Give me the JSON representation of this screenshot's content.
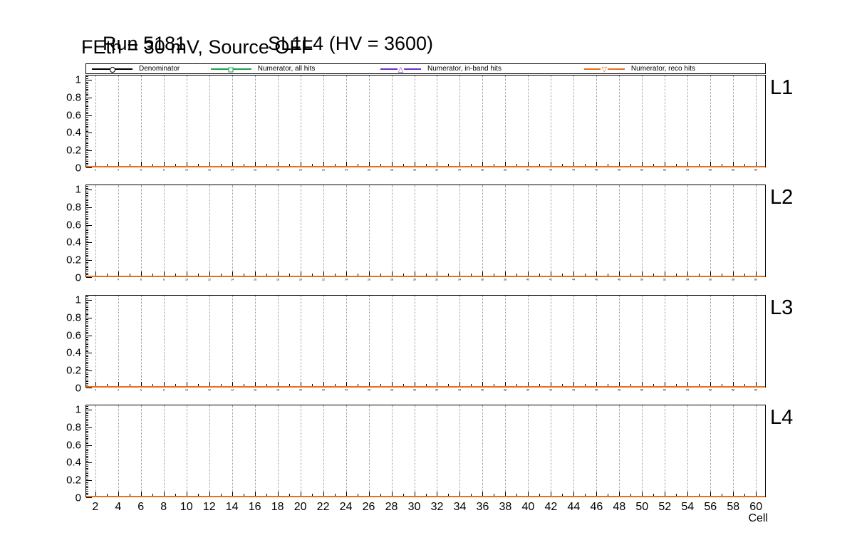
{
  "title": {
    "run": "Run 5181",
    "superlayer": "SL1L4 (HV = 3600)",
    "subtitle": "FEth = 30 mV, Source OFF"
  },
  "legend": {
    "entries": [
      {
        "label": "Denominator",
        "marker": "open-circle",
        "color": "#000000"
      },
      {
        "label": "Numerator, all hits",
        "marker": "open-square",
        "color": "#19a24a"
      },
      {
        "label": "Numerator, in-band hits",
        "marker": "open-triangle-up",
        "color": "#6a2fd0"
      },
      {
        "label": "Numerator, reco hits",
        "marker": "open-triangle-down",
        "color": "#e8701a"
      }
    ]
  },
  "panels": [
    {
      "label": "L1"
    },
    {
      "label": "L2"
    },
    {
      "label": "L3"
    },
    {
      "label": "L4"
    }
  ],
  "axes": {
    "x": {
      "label": "Cell",
      "view_min": 1.2,
      "view_max": 60.8,
      "ticks": [
        2,
        4,
        6,
        8,
        10,
        12,
        14,
        16,
        18,
        20,
        22,
        24,
        26,
        28,
        30,
        32,
        34,
        36,
        38,
        40,
        42,
        44,
        46,
        48,
        50,
        52,
        54,
        56,
        58,
        60
      ]
    },
    "y": {
      "view_min": 0,
      "view_max": 1.05,
      "ticks": [
        {
          "value": 1,
          "label": "1"
        },
        {
          "value": 0.8,
          "label": "0.8"
        },
        {
          "value": 0.6,
          "label": "0.6"
        },
        {
          "value": 0.4,
          "label": "0.4"
        },
        {
          "value": 0.2,
          "label": "0.2"
        },
        {
          "value": 0,
          "label": "0"
        }
      ]
    }
  },
  "plot": {
    "zero_line_color": "#e8701a",
    "grid_color": "#999999"
  },
  "chart_data": [
    {
      "type": "line",
      "title": "L1",
      "xlabel": "Cell",
      "ylabel": "",
      "xlim": [
        1.2,
        60.8
      ],
      "ylim": [
        0,
        1.05
      ],
      "x_ticks_range": [
        2,
        60
      ],
      "x_tick_step": 2,
      "grid": "vertical dotted",
      "legend_position": "top horizontal strip",
      "series": [
        {
          "name": "Denominator",
          "marker": "open-circle",
          "color": "#000000",
          "y_constant": 0
        },
        {
          "name": "Numerator, all hits",
          "marker": "open-square",
          "color": "#19a24a",
          "y_constant": 0
        },
        {
          "name": "Numerator, in-band hits",
          "marker": "open-triangle-up",
          "color": "#6a2fd0",
          "y_constant": 0
        },
        {
          "name": "Numerator, reco hits",
          "marker": "open-triangle-down",
          "color": "#e8701a",
          "y_constant": 0
        }
      ],
      "note": "All series flat at y = 0 for every cell from 2 to 60"
    },
    {
      "type": "line",
      "title": "L2",
      "xlabel": "Cell",
      "ylabel": "",
      "xlim": [
        1.2,
        60.8
      ],
      "ylim": [
        0,
        1.05
      ],
      "x_ticks_range": [
        2,
        60
      ],
      "x_tick_step": 2,
      "grid": "vertical dotted",
      "legend_position": "top horizontal strip",
      "series": [
        {
          "name": "Denominator",
          "marker": "open-circle",
          "color": "#000000",
          "y_constant": 0
        },
        {
          "name": "Numerator, all hits",
          "marker": "open-square",
          "color": "#19a24a",
          "y_constant": 0
        },
        {
          "name": "Numerator, in-band hits",
          "marker": "open-triangle-up",
          "color": "#6a2fd0",
          "y_constant": 0
        },
        {
          "name": "Numerator, reco hits",
          "marker": "open-triangle-down",
          "color": "#e8701a",
          "y_constant": 0
        }
      ],
      "note": "All series flat at y = 0 for every cell from 2 to 60"
    },
    {
      "type": "line",
      "title": "L3",
      "xlabel": "Cell",
      "ylabel": "",
      "xlim": [
        1.2,
        60.8
      ],
      "ylim": [
        0,
        1.05
      ],
      "x_ticks_range": [
        2,
        60
      ],
      "x_tick_step": 2,
      "grid": "vertical dotted",
      "legend_position": "top horizontal strip",
      "series": [
        {
          "name": "Denominator",
          "marker": "open-circle",
          "color": "#000000",
          "y_constant": 0
        },
        {
          "name": "Numerator, all hits",
          "marker": "open-square",
          "color": "#19a24a",
          "y_constant": 0
        },
        {
          "name": "Numerator, in-band hits",
          "marker": "open-triangle-up",
          "color": "#6a2fd0",
          "y_constant": 0
        },
        {
          "name": "Numerator, reco hits",
          "marker": "open-triangle-down",
          "color": "#e8701a",
          "y_constant": 0
        }
      ],
      "note": "All series flat at y = 0 for every cell from 2 to 60"
    },
    {
      "type": "line",
      "title": "L4",
      "xlabel": "Cell",
      "ylabel": "",
      "xlim": [
        1.2,
        60.8
      ],
      "ylim": [
        0,
        1.05
      ],
      "x_ticks_range": [
        2,
        60
      ],
      "x_tick_step": 2,
      "grid": "vertical dotted",
      "legend_position": "top horizontal strip",
      "series": [
        {
          "name": "Denominator",
          "marker": "open-circle",
          "color": "#000000",
          "y_constant": 0
        },
        {
          "name": "Numerator, all hits",
          "marker": "open-square",
          "color": "#19a24a",
          "y_constant": 0
        },
        {
          "name": "Numerator, in-band hits",
          "marker": "open-triangle-up",
          "color": "#6a2fd0",
          "y_constant": 0
        },
        {
          "name": "Numerator, reco hits",
          "marker": "open-triangle-down",
          "color": "#e8701a",
          "y_constant": 0
        }
      ],
      "note": "All series flat at y = 0 for every cell from 2 to 60"
    }
  ]
}
